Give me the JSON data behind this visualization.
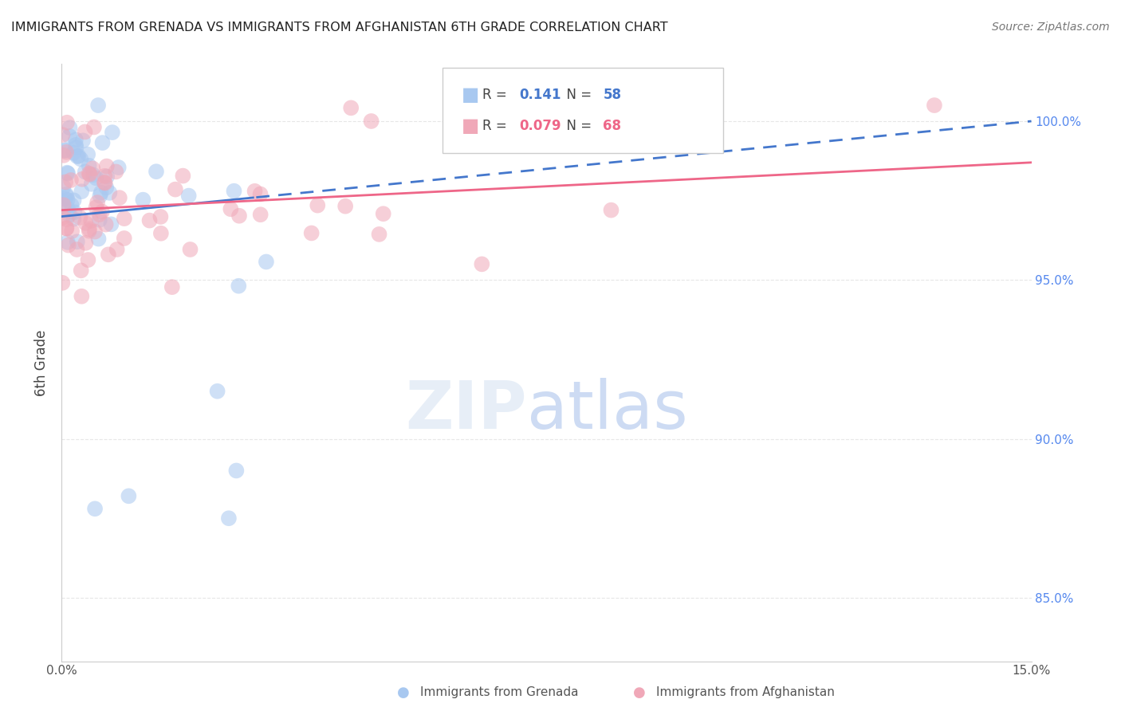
{
  "title": "IMMIGRANTS FROM GRENADA VS IMMIGRANTS FROM AFGHANISTAN 6TH GRADE CORRELATION CHART",
  "source": "Source: ZipAtlas.com",
  "ylabel": "6th Grade",
  "x_min": 0.0,
  "x_max": 15.0,
  "y_min": 83.0,
  "y_max": 101.8,
  "blue_R": 0.141,
  "blue_N": 58,
  "pink_R": 0.079,
  "pink_N": 68,
  "blue_color": "#a8c8f0",
  "pink_color": "#f0a8b8",
  "blue_line_color": "#4477cc",
  "pink_line_color": "#ee6688",
  "blue_label": "Immigrants from Grenada",
  "pink_label": "Immigrants from Afghanistan",
  "background_color": "#ffffff",
  "grid_color": "#dddddd",
  "title_color": "#222222",
  "right_axis_color": "#5588ee"
}
